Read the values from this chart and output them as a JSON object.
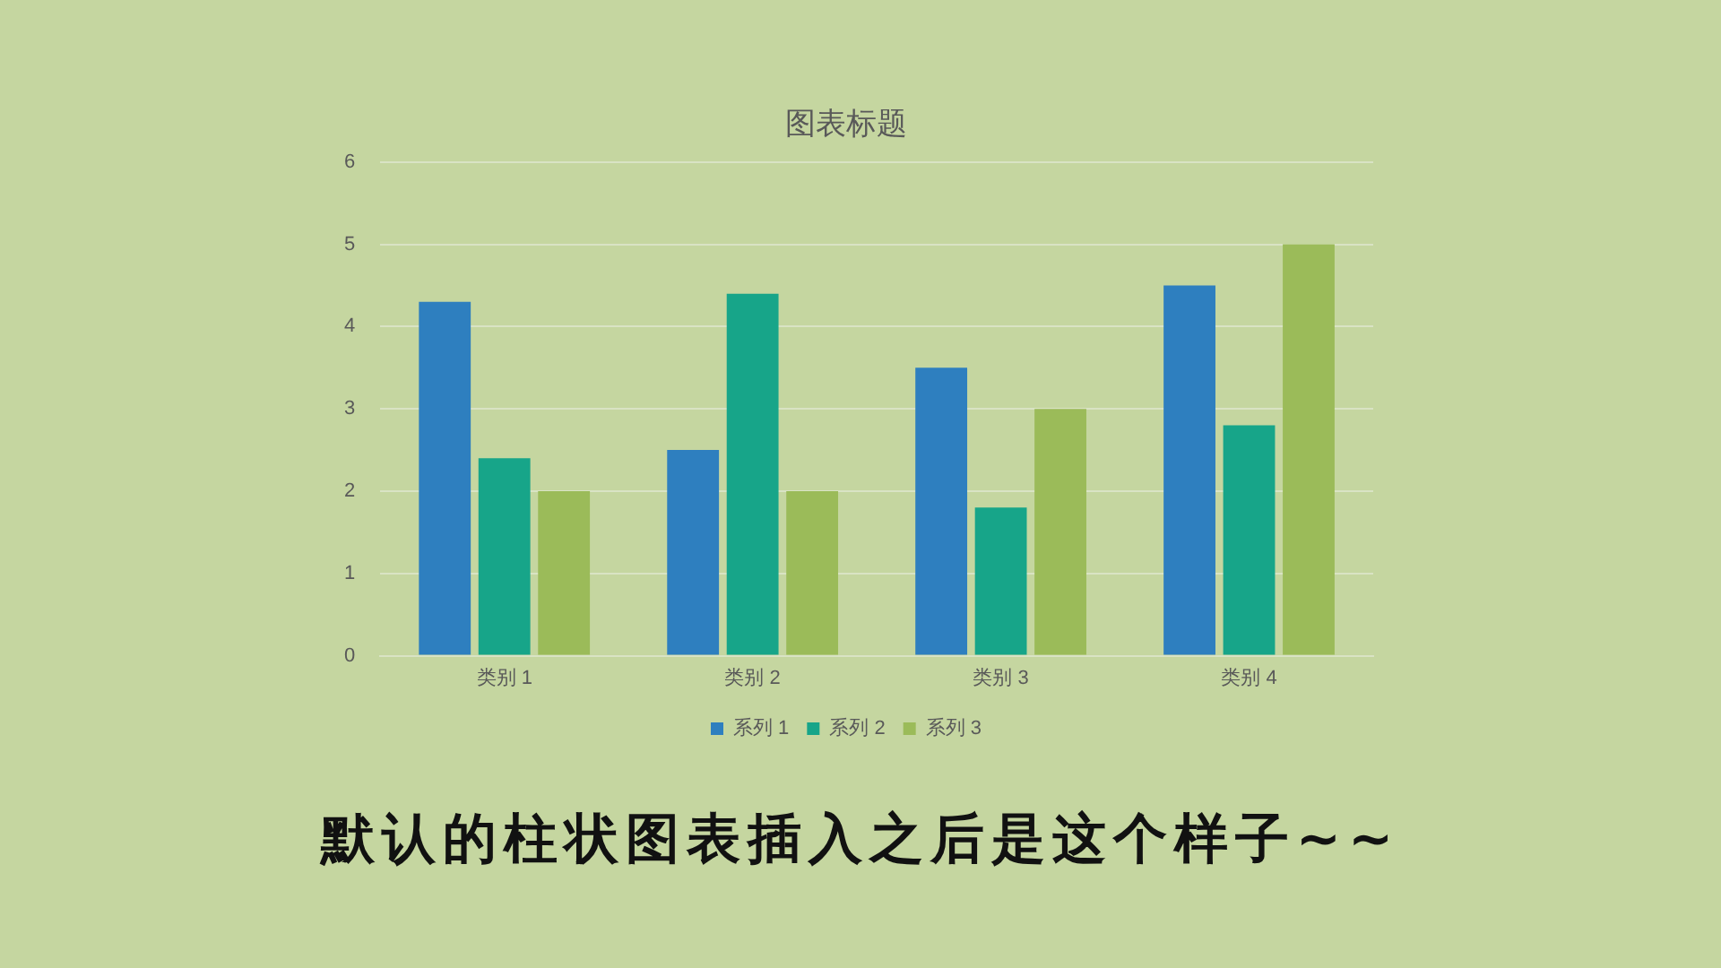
{
  "chart_data": {
    "type": "bar",
    "title": "图表标题",
    "categories": [
      "类别 1",
      "类别 2",
      "类别 3",
      "类别 4"
    ],
    "series": [
      {
        "name": "系列 1",
        "color": "#2e7fbf",
        "values": [
          4.3,
          2.5,
          3.5,
          4.5
        ]
      },
      {
        "name": "系列 2",
        "color": "#17a589",
        "values": [
          2.4,
          4.4,
          1.8,
          2.8
        ]
      },
      {
        "name": "系列 3",
        "color": "#9bbb59",
        "values": [
          2,
          2,
          3,
          5
        ]
      }
    ],
    "ylim": [
      0,
      6
    ],
    "yticks": [
      0,
      1,
      2,
      3,
      4,
      5,
      6
    ],
    "grid": "y",
    "legend": "bottom",
    "annotations": [
      "默认的柱状图表插入之后是这个样子~~"
    ]
  }
}
